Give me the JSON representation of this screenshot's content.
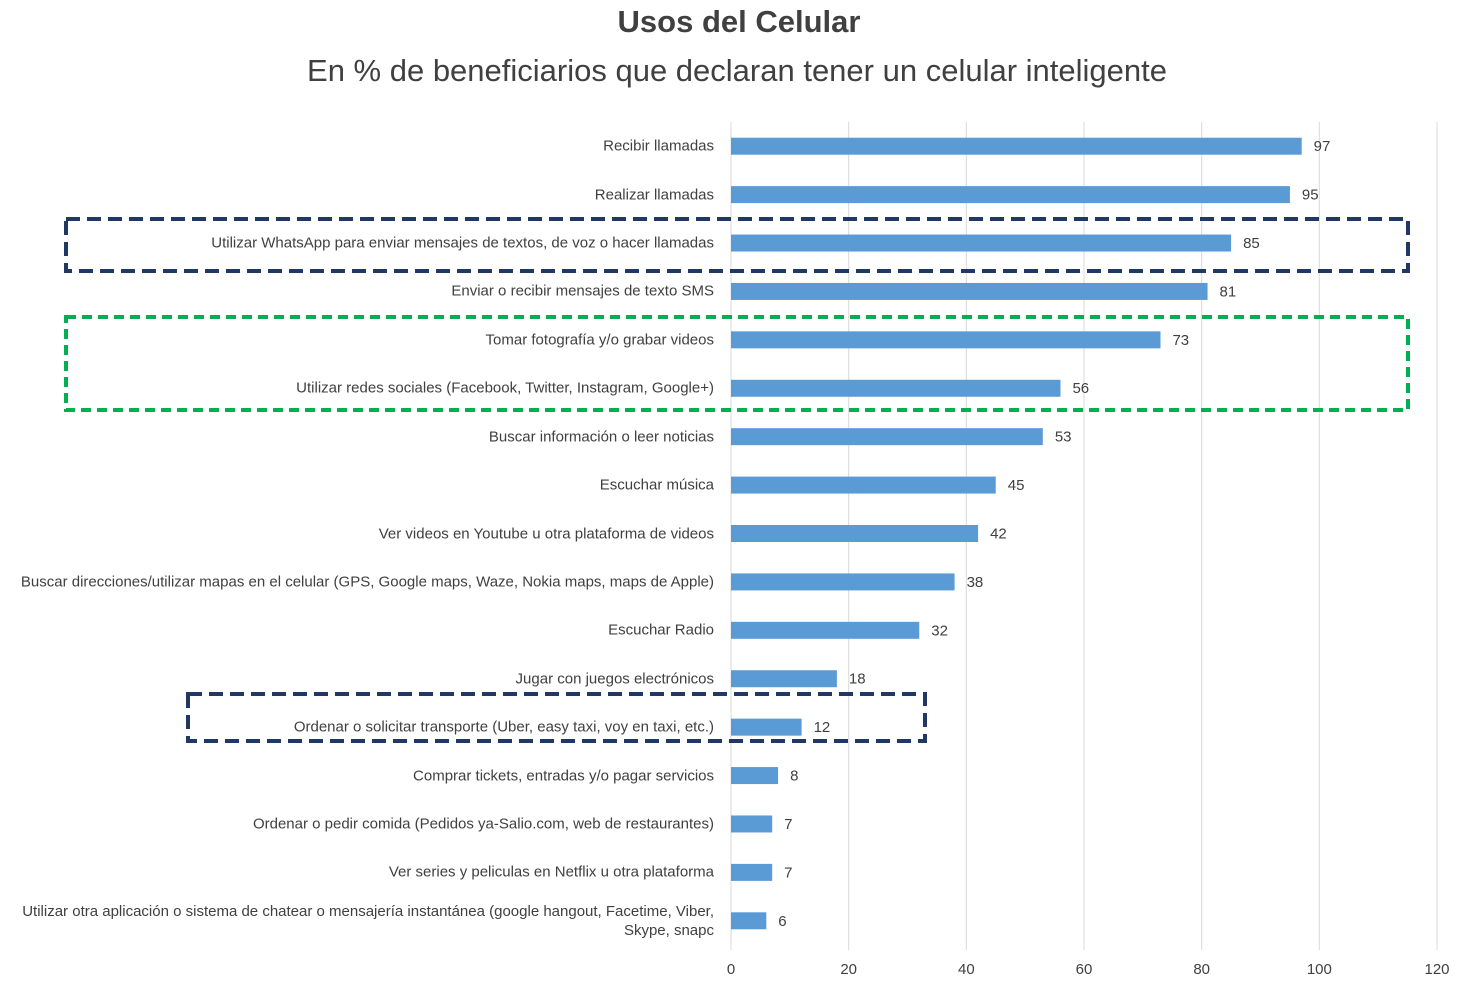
{
  "chart_data": {
    "type": "bar",
    "orientation": "horizontal",
    "title": "Usos del Celular",
    "subtitle": "En % de beneficiarios que declaran tener un celular inteligente",
    "categories": [
      "Recibir llamadas",
      "Realizar llamadas",
      "Utilizar WhatsApp para enviar mensajes de textos, de voz o hacer llamadas",
      "Enviar o recibir mensajes de texto SMS",
      "Tomar fotografía y/o grabar videos",
      "Utilizar redes sociales (Facebook, Twitter, Instagram, Google+)",
      "Buscar información o leer noticias",
      "Escuchar música",
      "Ver videos en Youtube u otra plataforma de videos",
      "Buscar direcciones/utilizar mapas en el celular (GPS, Google maps, Waze, Nokia maps, maps de Apple)",
      "Escuchar Radio",
      "Jugar con juegos electrónicos",
      "Ordenar o solicitar transporte (Uber, easy taxi, voy en taxi, etc.)",
      "Comprar tickets, entradas y/o pagar servicios",
      "Ordenar o pedir comida (Pedidos ya-Salio.com, web de restaurantes)",
      "Ver series y peliculas en Netflix u otra plataforma",
      "Utilizar otra aplicación o sistema de chatear o mensajería instantánea (google hangout, Facetime, Viber, Skype, snapc"
    ],
    "values": [
      97,
      95,
      85,
      81,
      73,
      56,
      53,
      45,
      42,
      38,
      32,
      18,
      12,
      8,
      7,
      7,
      6
    ],
    "color": "#5b9bd5",
    "xlim": [
      0,
      120
    ],
    "xticks": [
      0,
      20,
      40,
      60,
      80,
      100,
      120
    ],
    "grid": true
  }
}
